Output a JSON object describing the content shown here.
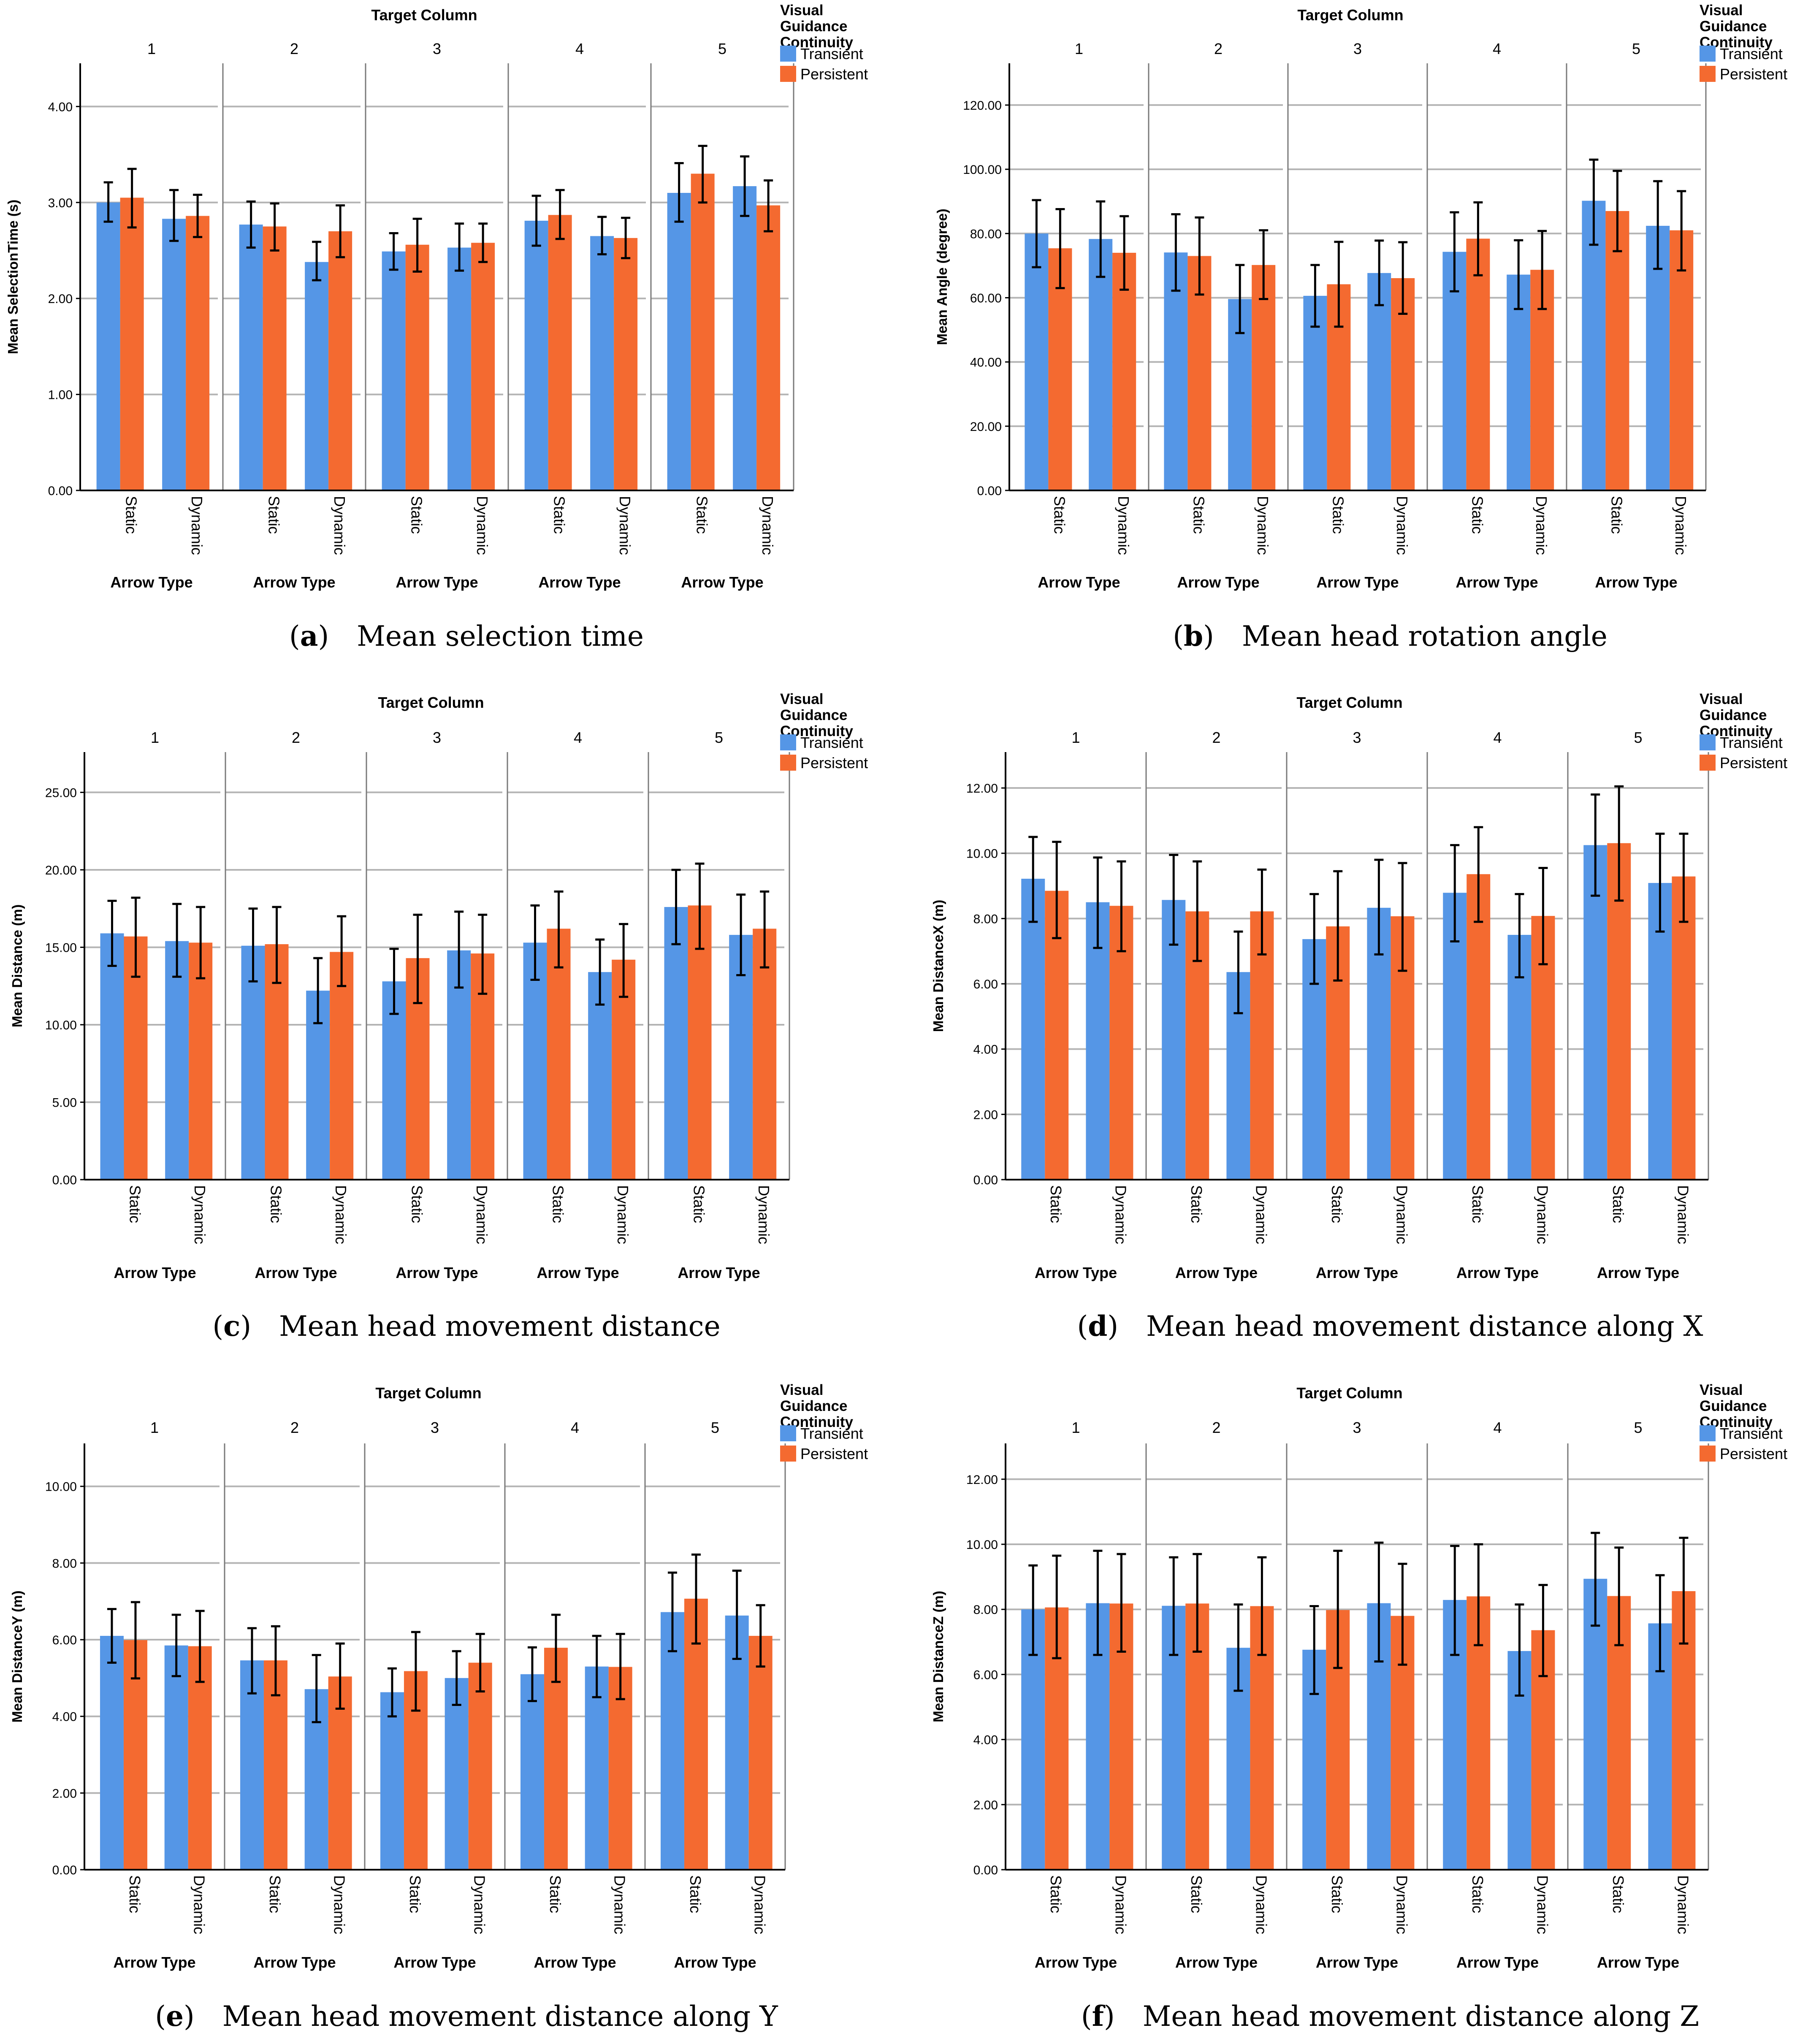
{
  "figure": {
    "colors": {
      "transient": "#5596e6",
      "persistent": "#f46a30",
      "grid": "#b4b4b4",
      "axis": "#000000",
      "errorbar": "#000000"
    },
    "panel_header": "Target Column",
    "column_labels": [
      "1",
      "2",
      "3",
      "4",
      "5"
    ],
    "arrow_types": [
      "Static",
      "Dynamic"
    ],
    "x_axis_label": "Arrow Type",
    "legend": {
      "title_lines": [
        "Visual",
        "Guidance",
        "Continuity"
      ],
      "entries": [
        "Transient",
        "Persistent"
      ]
    }
  },
  "chart_data": [
    {
      "type": "bar",
      "caption_letter": "a",
      "caption_text": "Mean selection time",
      "ylabel": "Mean SelectionTime (s)",
      "ylim": [
        0,
        4.45
      ],
      "yticks": [
        0,
        1,
        2,
        3,
        4
      ],
      "ytick_labels": [
        "0.00",
        "1.00",
        "2.00",
        "3.00",
        "4.00"
      ],
      "series": [
        {
          "name": "Transient",
          "values": [
            [
              3.0,
              2.83
            ],
            [
              2.77,
              2.38
            ],
            [
              2.49,
              2.53
            ],
            [
              2.81,
              2.65
            ],
            [
              3.1,
              3.17
            ]
          ],
          "err_low": [
            [
              2.8,
              2.6
            ],
            [
              2.53,
              2.19
            ],
            [
              2.3,
              2.29
            ],
            [
              2.55,
              2.46
            ],
            [
              2.8,
              2.86
            ]
          ],
          "err_high": [
            [
              3.21,
              3.13
            ],
            [
              3.01,
              2.59
            ],
            [
              2.68,
              2.78
            ],
            [
              3.07,
              2.85
            ],
            [
              3.41,
              3.48
            ]
          ]
        },
        {
          "name": "Persistent",
          "values": [
            [
              3.05,
              2.86
            ],
            [
              2.75,
              2.7
            ],
            [
              2.56,
              2.58
            ],
            [
              2.87,
              2.63
            ],
            [
              3.3,
              2.97
            ]
          ],
          "err_low": [
            [
              2.74,
              2.64
            ],
            [
              2.5,
              2.43
            ],
            [
              2.28,
              2.38
            ],
            [
              2.62,
              2.42
            ],
            [
              3.0,
              2.7
            ]
          ],
          "err_high": [
            [
              3.35,
              3.08
            ],
            [
              2.99,
              2.97
            ],
            [
              2.83,
              2.78
            ],
            [
              3.13,
              2.84
            ],
            [
              3.59,
              3.23
            ]
          ]
        }
      ]
    },
    {
      "type": "bar",
      "caption_letter": "b",
      "caption_text": "Mean head rotation angle",
      "ylabel": "Mean Angle (degree)",
      "ylim": [
        0,
        133
      ],
      "yticks": [
        0,
        20,
        40,
        60,
        80,
        100,
        120
      ],
      "ytick_labels": [
        "0.00",
        "20.00",
        "40.00",
        "60.00",
        "80.00",
        "100.00",
        "120.00"
      ],
      "series": [
        {
          "name": "Transient",
          "values": [
            [
              80.0,
              78.3
            ],
            [
              74.1,
              59.6
            ],
            [
              60.6,
              67.7
            ],
            [
              74.3,
              67.2
            ],
            [
              90.2,
              82.4
            ]
          ],
          "err_low": [
            [
              69.5,
              66.5
            ],
            [
              62.2,
              49.0
            ],
            [
              51.0,
              57.7
            ],
            [
              62.0,
              56.5
            ],
            [
              76.5,
              69.0
            ]
          ],
          "err_high": [
            [
              90.4,
              90.0
            ],
            [
              86.0,
              70.2
            ],
            [
              70.2,
              77.8
            ],
            [
              86.6,
              77.9
            ],
            [
              103.0,
              96.3
            ]
          ]
        },
        {
          "name": "Persistent",
          "values": [
            [
              75.4,
              74.0
            ],
            [
              73.0,
              70.2
            ],
            [
              64.2,
              66.1
            ],
            [
              78.4,
              68.7
            ],
            [
              87.0,
              81.0
            ]
          ],
          "err_low": [
            [
              63.0,
              62.5
            ],
            [
              61.0,
              59.6
            ],
            [
              51.0,
              55.0
            ],
            [
              67.0,
              56.5
            ],
            [
              74.5,
              68.5
            ]
          ],
          "err_high": [
            [
              87.6,
              85.4
            ],
            [
              85.0,
              81.0
            ],
            [
              77.4,
              77.3
            ],
            [
              89.7,
              80.8
            ],
            [
              99.5,
              93.2
            ]
          ]
        }
      ]
    },
    {
      "type": "bar",
      "caption_letter": "c",
      "caption_text": "Mean head movement distance",
      "ylabel": "Mean Distance (m)",
      "ylim": [
        0,
        27.6
      ],
      "yticks": [
        0,
        5,
        10,
        15,
        20,
        25
      ],
      "ytick_labels": [
        "0.00",
        "5.00",
        "10.00",
        "15.00",
        "20.00",
        "25.00"
      ],
      "series": [
        {
          "name": "Transient",
          "values": [
            [
              15.9,
              15.4
            ],
            [
              15.1,
              12.2
            ],
            [
              12.8,
              14.8
            ],
            [
              15.3,
              13.4
            ],
            [
              17.6,
              15.8
            ]
          ],
          "err_low": [
            [
              13.8,
              13.1
            ],
            [
              12.8,
              10.1
            ],
            [
              10.7,
              12.4
            ],
            [
              12.9,
              11.3
            ],
            [
              15.2,
              13.2
            ]
          ],
          "err_high": [
            [
              18.0,
              17.8
            ],
            [
              17.5,
              14.3
            ],
            [
              14.9,
              17.3
            ],
            [
              17.7,
              15.5
            ],
            [
              20.0,
              18.4
            ]
          ]
        },
        {
          "name": "Persistent",
          "values": [
            [
              15.7,
              15.3
            ],
            [
              15.2,
              14.7
            ],
            [
              14.3,
              14.6
            ],
            [
              16.2,
              14.2
            ],
            [
              17.7,
              16.2
            ]
          ],
          "err_low": [
            [
              13.1,
              13.0
            ],
            [
              12.7,
              12.5
            ],
            [
              11.4,
              12.0
            ],
            [
              13.7,
              11.8
            ],
            [
              14.9,
              13.7
            ]
          ],
          "err_high": [
            [
              18.2,
              17.6
            ],
            [
              17.6,
              17.0
            ],
            [
              17.1,
              17.1
            ],
            [
              18.6,
              16.5
            ],
            [
              20.4,
              18.6
            ]
          ]
        }
      ]
    },
    {
      "type": "bar",
      "caption_letter": "d",
      "caption_text": "Mean head movement distance along X",
      "ylabel": "Mean DistanceX (m)",
      "ylim": [
        0,
        13.1
      ],
      "yticks": [
        0,
        2,
        4,
        6,
        8,
        10,
        12
      ],
      "ytick_labels": [
        "0.00",
        "2.00",
        "4.00",
        "6.00",
        "8.00",
        "10.00",
        "12.00"
      ],
      "series": [
        {
          "name": "Transient",
          "values": [
            [
              9.22,
              8.5
            ],
            [
              8.57,
              6.36
            ],
            [
              7.37,
              8.33
            ],
            [
              8.79,
              7.5
            ],
            [
              10.25,
              9.09
            ]
          ],
          "err_low": [
            [
              7.9,
              7.1
            ],
            [
              7.2,
              5.1
            ],
            [
              6.0,
              6.9
            ],
            [
              7.3,
              6.2
            ],
            [
              8.7,
              7.6
            ]
          ],
          "err_high": [
            [
              10.5,
              9.87
            ],
            [
              9.95,
              7.6
            ],
            [
              8.75,
              9.8
            ],
            [
              10.25,
              8.75
            ],
            [
              11.8,
              10.6
            ]
          ]
        },
        {
          "name": "Persistent",
          "values": [
            [
              8.85,
              8.39
            ],
            [
              8.22,
              8.22
            ],
            [
              7.76,
              8.07
            ],
            [
              9.36,
              8.08
            ],
            [
              10.31,
              9.29
            ]
          ],
          "err_low": [
            [
              7.4,
              7.0
            ],
            [
              6.7,
              6.9
            ],
            [
              6.1,
              6.4
            ],
            [
              7.9,
              6.6
            ],
            [
              8.55,
              7.9
            ]
          ],
          "err_high": [
            [
              10.35,
              9.75
            ],
            [
              9.75,
              9.5
            ],
            [
              9.45,
              9.7
            ],
            [
              10.8,
              9.55
            ],
            [
              12.05,
              10.6
            ]
          ]
        }
      ]
    },
    {
      "type": "bar",
      "caption_letter": "e",
      "caption_text": "Mean head movement distance along Y",
      "ylabel": "Mean DistanceY (m)",
      "ylim": [
        0,
        11.12
      ],
      "yticks": [
        0,
        2,
        4,
        6,
        8,
        10
      ],
      "ytick_labels": [
        "0.00",
        "2.00",
        "4.00",
        "6.00",
        "8.00",
        "10.00"
      ],
      "series": [
        {
          "name": "Transient",
          "values": [
            [
              6.1,
              5.85
            ],
            [
              5.46,
              4.71
            ],
            [
              4.63,
              5.0
            ],
            [
              5.1,
              5.3
            ],
            [
              6.72,
              6.63
            ]
          ],
          "err_low": [
            [
              5.4,
              5.05
            ],
            [
              4.6,
              3.85
            ],
            [
              4.0,
              4.3
            ],
            [
              4.4,
              4.5
            ],
            [
              5.7,
              5.5
            ]
          ],
          "err_high": [
            [
              6.8,
              6.65
            ],
            [
              6.3,
              5.6
            ],
            [
              5.25,
              5.7
            ],
            [
              5.8,
              6.1
            ],
            [
              7.75,
              7.8
            ]
          ]
        },
        {
          "name": "Persistent",
          "values": [
            [
              5.99,
              5.83
            ],
            [
              5.46,
              5.04
            ],
            [
              5.18,
              5.4
            ],
            [
              5.79,
              5.29
            ],
            [
              7.07,
              6.1
            ]
          ],
          "err_low": [
            [
              4.99,
              4.9
            ],
            [
              4.55,
              4.2
            ],
            [
              4.15,
              4.65
            ],
            [
              4.9,
              4.45
            ],
            [
              5.9,
              5.3
            ]
          ],
          "err_high": [
            [
              6.98,
              6.75
            ],
            [
              6.35,
              5.9
            ],
            [
              6.2,
              6.15
            ],
            [
              6.65,
              6.15
            ],
            [
              8.22,
              6.9
            ]
          ]
        }
      ]
    },
    {
      "type": "bar",
      "caption_letter": "f",
      "caption_text": "Mean head movement distance along Z",
      "ylabel": "Mean DistanceZ (m)",
      "ylim": [
        0,
        13.1
      ],
      "yticks": [
        0,
        2,
        4,
        6,
        8,
        10,
        12
      ],
      "ytick_labels": [
        "0.00",
        "2.00",
        "4.00",
        "6.00",
        "8.00",
        "10.00",
        "12.00"
      ],
      "series": [
        {
          "name": "Transient",
          "values": [
            [
              8.0,
              8.19
            ],
            [
              8.11,
              6.82
            ],
            [
              6.76,
              8.19
            ],
            [
              8.29,
              6.72
            ],
            [
              8.94,
              7.57
            ]
          ],
          "err_low": [
            [
              6.6,
              6.6
            ],
            [
              6.6,
              5.5
            ],
            [
              5.4,
              6.4
            ],
            [
              6.6,
              5.35
            ],
            [
              7.5,
              6.1
            ]
          ],
          "err_high": [
            [
              9.35,
              9.8
            ],
            [
              9.6,
              8.15
            ],
            [
              8.1,
              10.05
            ],
            [
              9.95,
              8.15
            ],
            [
              10.35,
              9.05
            ]
          ]
        },
        {
          "name": "Persistent",
          "values": [
            [
              8.06,
              8.18
            ],
            [
              8.18,
              8.1
            ],
            [
              7.98,
              7.8
            ],
            [
              8.4,
              7.36
            ],
            [
              8.41,
              8.56
            ]
          ],
          "err_low": [
            [
              6.5,
              6.7
            ],
            [
              6.7,
              6.6
            ],
            [
              6.2,
              6.3
            ],
            [
              6.9,
              5.95
            ],
            [
              6.9,
              6.95
            ]
          ],
          "err_high": [
            [
              9.65,
              9.7
            ],
            [
              9.7,
              9.6
            ],
            [
              9.8,
              9.4
            ],
            [
              10.0,
              8.75
            ],
            [
              9.9,
              10.2
            ]
          ]
        }
      ]
    }
  ]
}
